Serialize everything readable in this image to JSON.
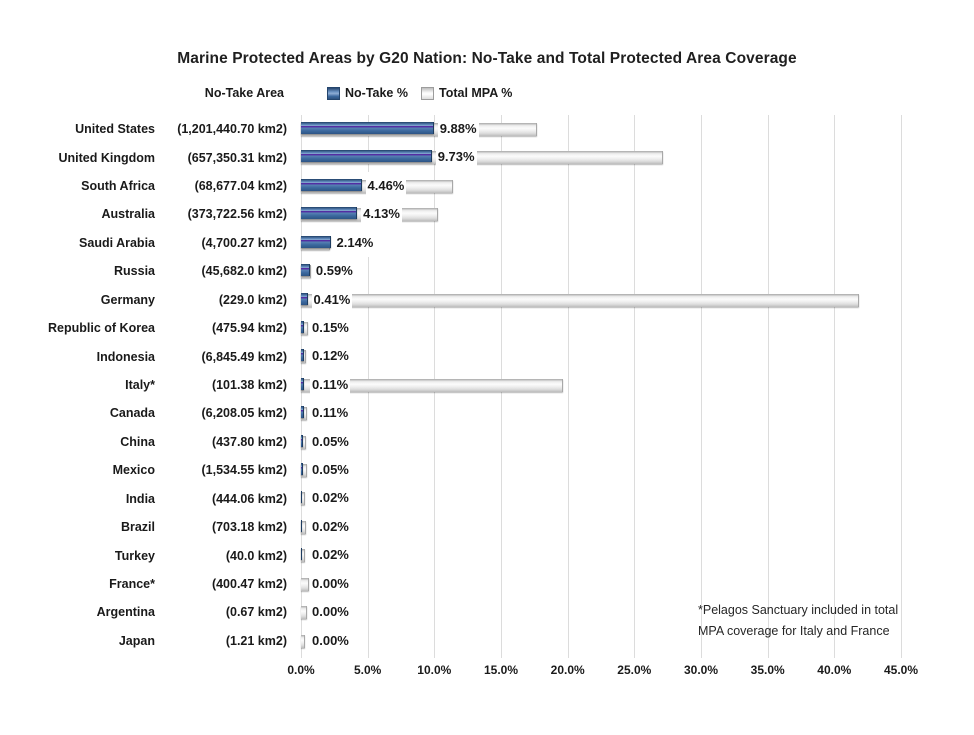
{
  "title": "Marine Protected Areas by G20 Nation: No-Take and Total Protected Area Coverage",
  "legend": {
    "column_header": "No-Take Area",
    "items": [
      {
        "label": "No-Take %",
        "color": "#3f6da8"
      },
      {
        "label": "Total MPA %",
        "color": "#eaeaea"
      }
    ]
  },
  "x_axis": {
    "ticks": [
      "0.0%",
      "5.0%",
      "10.0%",
      "15.0%",
      "20.0%",
      "25.0%",
      "30.0%",
      "35.0%",
      "40.0%",
      "45.0%"
    ],
    "min": 0,
    "max": 45
  },
  "footnote": {
    "line1": "*Pelagos Sanctuary included in total",
    "line2": "MPA coverage for Italy and France"
  },
  "chart_data": {
    "type": "bar",
    "orientation": "horizontal",
    "title": "Marine Protected Areas by G20 Nation: No-Take and Total Protected Area Coverage",
    "xlabel": "",
    "ylabel": "No-Take Area",
    "xlim": [
      0,
      45
    ],
    "grid": true,
    "legend_position": "top",
    "categories": [
      "United States",
      "United Kingdom",
      "South Africa",
      "Australia",
      "Saudi Arabia",
      "Russia",
      "Germany",
      "Republic of Korea",
      "Indonesia",
      "Italy*",
      "Canada",
      "China",
      "Mexico",
      "India",
      "Brazil",
      "Turkey",
      "France*",
      "Argentina",
      "Japan"
    ],
    "series": [
      {
        "name": "No-Take %",
        "values": [
          9.88,
          9.73,
          4.46,
          4.13,
          2.14,
          0.59,
          0.41,
          0.15,
          0.12,
          0.11,
          0.11,
          0.05,
          0.05,
          0.02,
          0.02,
          0.02,
          0.0,
          0.0,
          0.0
        ]
      },
      {
        "name": "Total MPA %",
        "values": [
          17.6,
          27.1,
          11.3,
          10.2,
          2.1,
          0.7,
          41.8,
          0.45,
          0.3,
          19.6,
          0.35,
          0.3,
          0.35,
          0.2,
          0.3,
          0.2,
          0.5,
          0.35,
          0.25
        ]
      }
    ],
    "rows": [
      {
        "country": "United States",
        "area": "(1,201,440.70 km2)",
        "no_take_label": "9.88%",
        "no_take": 9.88,
        "total_mpa": 17.6
      },
      {
        "country": "United Kingdom",
        "area": "(657,350.31 km2)",
        "no_take_label": "9.73%",
        "no_take": 9.73,
        "total_mpa": 27.1
      },
      {
        "country": "South Africa",
        "area": "(68,677.04 km2)",
        "no_take_label": "4.46%",
        "no_take": 4.46,
        "total_mpa": 11.3
      },
      {
        "country": "Australia",
        "area": "(373,722.56 km2)",
        "no_take_label": "4.13%",
        "no_take": 4.13,
        "total_mpa": 10.2
      },
      {
        "country": "Saudi Arabia",
        "area": "(4,700.27 km2)",
        "no_take_label": "2.14%",
        "no_take": 2.14,
        "total_mpa": 2.1
      },
      {
        "country": "Russia",
        "area": "(45,682.0 km2)",
        "no_take_label": "0.59%",
        "no_take": 0.59,
        "total_mpa": 0.7
      },
      {
        "country": "Germany",
        "area": "(229.0 km2)",
        "no_take_label": "0.41%",
        "no_take": 0.41,
        "total_mpa": 41.8
      },
      {
        "country": "Republic of Korea",
        "area": "(475.94 km2)",
        "no_take_label": "0.15%",
        "no_take": 0.15,
        "total_mpa": 0.45
      },
      {
        "country": "Indonesia",
        "area": "(6,845.49 km2)",
        "no_take_label": "0.12%",
        "no_take": 0.12,
        "total_mpa": 0.3
      },
      {
        "country": "Italy*",
        "area": "(101.38 km2)",
        "no_take_label": "0.11%",
        "no_take": 0.11,
        "total_mpa": 19.6
      },
      {
        "country": "Canada",
        "area": "(6,208.05 km2)",
        "no_take_label": "0.11%",
        "no_take": 0.11,
        "total_mpa": 0.35
      },
      {
        "country": "China",
        "area": "(437.80 km2)",
        "no_take_label": "0.05%",
        "no_take": 0.05,
        "total_mpa": 0.3
      },
      {
        "country": "Mexico",
        "area": "(1,534.55 km2)",
        "no_take_label": "0.05%",
        "no_take": 0.05,
        "total_mpa": 0.35
      },
      {
        "country": "India",
        "area": "(444.06 km2)",
        "no_take_label": "0.02%",
        "no_take": 0.02,
        "total_mpa": 0.2
      },
      {
        "country": "Brazil",
        "area": "(703.18 km2)",
        "no_take_label": "0.02%",
        "no_take": 0.02,
        "total_mpa": 0.3
      },
      {
        "country": "Turkey",
        "area": "(40.0 km2)",
        "no_take_label": "0.02%",
        "no_take": 0.02,
        "total_mpa": 0.2
      },
      {
        "country": "France*",
        "area": "(400.47 km2)",
        "no_take_label": "0.00%",
        "no_take": 0.0,
        "total_mpa": 0.5
      },
      {
        "country": "Argentina",
        "area": "(0.67 km2)",
        "no_take_label": "0.00%",
        "no_take": 0.0,
        "total_mpa": 0.35
      },
      {
        "country": "Japan",
        "area": "(1.21 km2)",
        "no_take_label": "0.00%",
        "no_take": 0.0,
        "total_mpa": 0.25
      }
    ]
  }
}
